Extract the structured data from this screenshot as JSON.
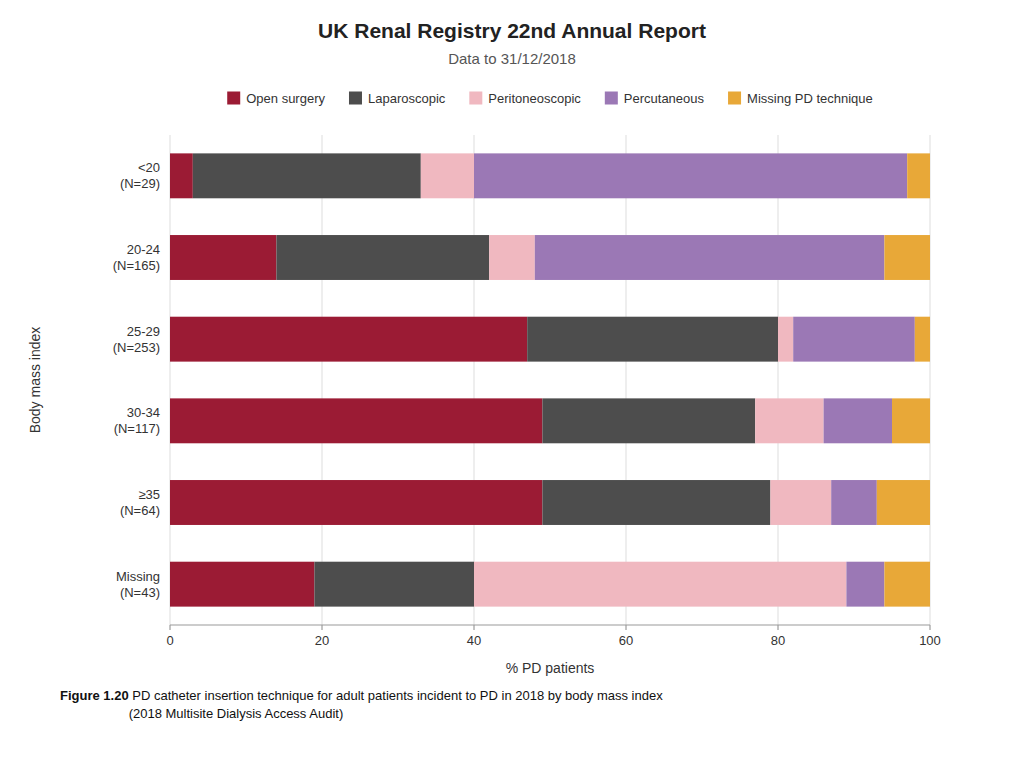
{
  "chart_data": {
    "type": "bar",
    "orientation": "horizontal",
    "stacked": true,
    "title": "UK Renal Registry 22nd Annual Report",
    "subtitle": "Data to 31/12/2018",
    "xlabel": "% PD patients",
    "ylabel": "Body mass index",
    "annotations": [
      "Figure 1.20",
      " PD catheter insertion technique for adult patients incident to PD in 2018 by body mass index\n(2018 Multisite Dialysis Access Audit)"
    ],
    "categories": [
      "Missing\n(N=43)",
      "≥35\n(N=64)",
      "30-34\n(N=117)",
      "25-29\n(N=253)",
      "20-24\n(N=165)",
      "<20\n(N=29)"
    ],
    "series": [
      {
        "name": "Open surgery",
        "color": "#9B1B34",
        "values": [
          19.0,
          49.0,
          49.0,
          47.0,
          14.0,
          3.0
        ]
      },
      {
        "name": "Laparoscopic",
        "color": "#4D4D4D",
        "values": [
          21.0,
          30.0,
          28.0,
          33.0,
          28.0,
          30.0
        ]
      },
      {
        "name": "Peritoneoscopic",
        "color": "#F0B8C0",
        "values": [
          49.0,
          8.0,
          9.0,
          2.0,
          6.0,
          7.0
        ]
      },
      {
        "name": "Percutaneous",
        "color": "#9B78B5",
        "values": [
          5.0,
          6.0,
          9.0,
          16.0,
          46.0,
          57.0
        ]
      },
      {
        "name": "Missing PD technique",
        "color": "#E8A838",
        "values": [
          6.0,
          7.0,
          5.0,
          2.0,
          6.0,
          3.0
        ]
      }
    ],
    "xlim": [
      0,
      100
    ],
    "xticks": [
      0,
      20,
      40,
      60,
      80,
      100
    ],
    "grid": true,
    "legend": "top"
  }
}
